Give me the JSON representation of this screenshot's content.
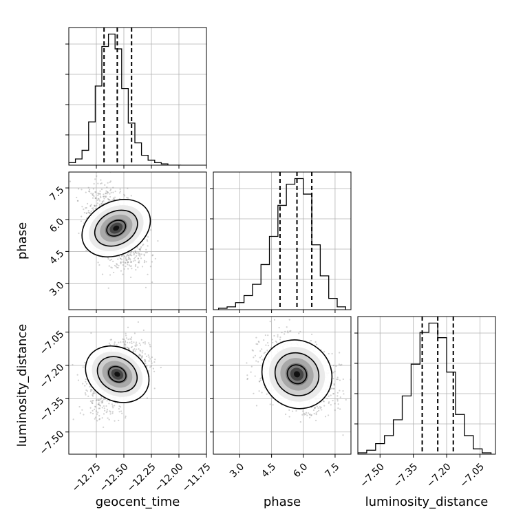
{
  "chart_data": {
    "type": "corner",
    "parameters": [
      "geocent_time",
      "phase",
      "luminosity_distance"
    ],
    "grid": true,
    "ranges": {
      "geocent_time": [
        -13.0,
        -11.75
      ],
      "phase": [
        1.75,
        8.25
      ],
      "luminosity_distance": [
        -7.6,
        -6.98
      ]
    },
    "ticks": {
      "geocent_time": [
        -12.75,
        -12.5,
        -12.25,
        -12.0,
        -11.75
      ],
      "phase": [
        3.0,
        4.5,
        6.0,
        7.5
      ],
      "luminosity_distance": [
        -7.5,
        -7.35,
        -7.2,
        -7.05
      ]
    },
    "tick_labels": {
      "geocent_time": [
        "−12.75",
        "−12.50",
        "−12.25",
        "−12.00",
        "−11.75"
      ],
      "phase": [
        "3.0",
        "4.5",
        "6.0",
        "7.5"
      ],
      "luminosity_distance": [
        "−7.50",
        "−7.35",
        "−7.20",
        "−7.05"
      ]
    },
    "quantiles": {
      "geocent_time": [
        -12.68,
        -12.56,
        -12.43
      ],
      "phase": [
        4.9,
        5.7,
        6.4
      ],
      "luminosity_distance": [
        -7.31,
        -7.24,
        -7.17
      ]
    },
    "histograms": {
      "geocent_time": {
        "bin_edges": [
          -13.0,
          -12.94,
          -12.88,
          -12.82,
          -12.76,
          -12.7,
          -12.64,
          -12.58,
          -12.52,
          -12.46,
          -12.4,
          -12.34,
          -12.28,
          -12.22,
          -12.16,
          -12.1,
          -12.04,
          -11.98
        ],
        "counts": [
          2,
          5,
          12,
          35,
          64,
          96,
          106,
          94,
          62,
          34,
          18,
          8,
          4,
          2,
          1,
          0,
          0
        ]
      },
      "phase": {
        "bin_edges": [
          2.0,
          2.4,
          2.8,
          3.2,
          3.6,
          4.0,
          4.4,
          4.8,
          5.2,
          5.6,
          6.0,
          6.4,
          6.8,
          7.2,
          7.6,
          8.0
        ],
        "counts": [
          1,
          2,
          5,
          10,
          18,
          32,
          52,
          74,
          89,
          93,
          82,
          46,
          24,
          8,
          2
        ]
      },
      "luminosity_distance": {
        "bin_edges": [
          -7.6,
          -7.56,
          -7.52,
          -7.48,
          -7.44,
          -7.4,
          -7.36,
          -7.32,
          -7.28,
          -7.24,
          -7.2,
          -7.16,
          -7.12,
          -7.08,
          -7.04,
          -7.0
        ],
        "counts": [
          1,
          3,
          8,
          14,
          26,
          44,
          68,
          92,
          99,
          88,
          62,
          30,
          14,
          4,
          1
        ]
      }
    },
    "joint_2d": [
      {
        "x": "geocent_time",
        "y": "phase",
        "center": [
          -12.57,
          5.6
        ],
        "sigma": [
          0.12,
          0.85
        ],
        "rho": -0.45
      },
      {
        "x": "geocent_time",
        "y": "luminosity_distance",
        "center": [
          -12.56,
          -7.24
        ],
        "sigma": [
          0.12,
          0.075
        ],
        "rho": 0.4
      },
      {
        "x": "phase",
        "y": "luminosity_distance",
        "center": [
          5.7,
          -7.24
        ],
        "sigma": [
          0.85,
          0.075
        ],
        "rho": -0.3
      }
    ]
  }
}
